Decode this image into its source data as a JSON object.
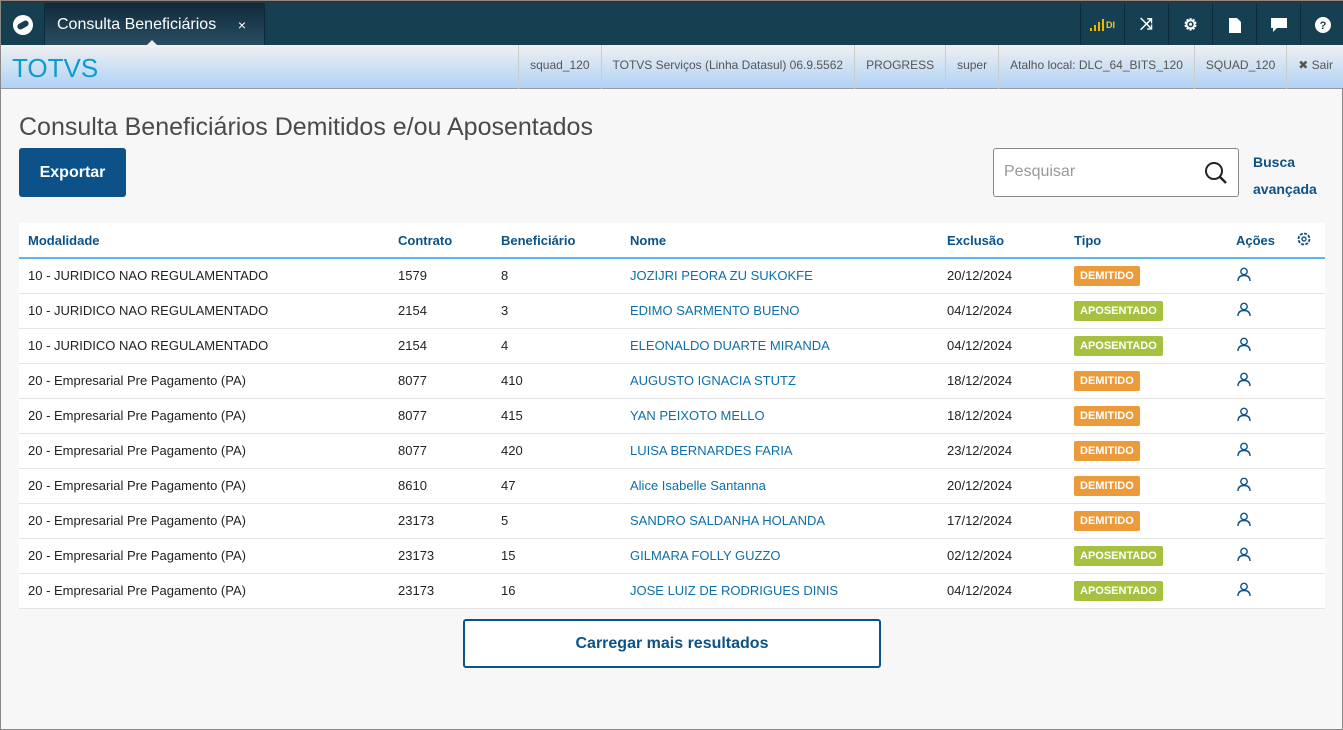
{
  "tab": {
    "title": "Consulta Beneficiários",
    "close": "×"
  },
  "topicons": [
    "signal-icon",
    "shuffle-icon",
    "gear-icon",
    "document-icon",
    "chat-icon",
    "help-icon"
  ],
  "signal_label": "DI",
  "brand": "TOTVS",
  "infos": [
    "squad_120",
    "TOTVS Serviços (Linha Datasul) 06.9.5562",
    "PROGRESS",
    "super",
    "Atalho local: DLC_64_BITS_120",
    "SQUAD_120"
  ],
  "logout": "✖ Sair",
  "page_title": "Consulta Beneficiários Demitidos e/ou Aposentados",
  "export_label": "Exportar",
  "search_placeholder": "Pesquisar",
  "advanced_search": "Busca avançada",
  "columns": [
    "Modalidade",
    "Contrato",
    "Beneficiário",
    "Nome",
    "Exclusão",
    "Tipo",
    "Ações"
  ],
  "colors": {
    "DEMITIDO": "#ec9b3b",
    "APOSENTADO": "#a5c13f",
    "primary": "#0c5289"
  },
  "rows": [
    [
      "10 - JURIDICO NAO REGULAMENTADO",
      "1579",
      "8",
      "JOZIJRI PEORA ZU SUKOKFE",
      "20/12/2024",
      "DEMITIDO"
    ],
    [
      "10 - JURIDICO NAO REGULAMENTADO",
      "2154",
      "3",
      "EDIMO SARMENTO BUENO",
      "04/12/2024",
      "APOSENTADO"
    ],
    [
      "10 - JURIDICO NAO REGULAMENTADO",
      "2154",
      "4",
      "ELEONALDO DUARTE MIRANDA",
      "04/12/2024",
      "APOSENTADO"
    ],
    [
      "20 - Empresarial Pre Pagamento (PA)",
      "8077",
      "410",
      "AUGUSTO IGNACIA STUTZ",
      "18/12/2024",
      "DEMITIDO"
    ],
    [
      "20 - Empresarial Pre Pagamento (PA)",
      "8077",
      "415",
      "YAN PEIXOTO MELLO",
      "18/12/2024",
      "DEMITIDO"
    ],
    [
      "20 - Empresarial Pre Pagamento (PA)",
      "8077",
      "420",
      "LUISA BERNARDES FARIA",
      "23/12/2024",
      "DEMITIDO"
    ],
    [
      "20 - Empresarial Pre Pagamento (PA)",
      "8610",
      "47",
      "Alice Isabelle Santanna",
      "20/12/2024",
      "DEMITIDO"
    ],
    [
      "20 - Empresarial Pre Pagamento (PA)",
      "23173",
      "5",
      "SANDRO SALDANHA HOLANDA",
      "17/12/2024",
      "DEMITIDO"
    ],
    [
      "20 - Empresarial Pre Pagamento (PA)",
      "23173",
      "15",
      "GILMARA FOLLY GUZZO",
      "02/12/2024",
      "APOSENTADO"
    ],
    [
      "20 - Empresarial Pre Pagamento (PA)",
      "23173",
      "16",
      "JOSE LUIZ DE RODRIGUES DINIS",
      "04/12/2024",
      "APOSENTADO"
    ]
  ],
  "load_more": "Carregar mais resultados"
}
